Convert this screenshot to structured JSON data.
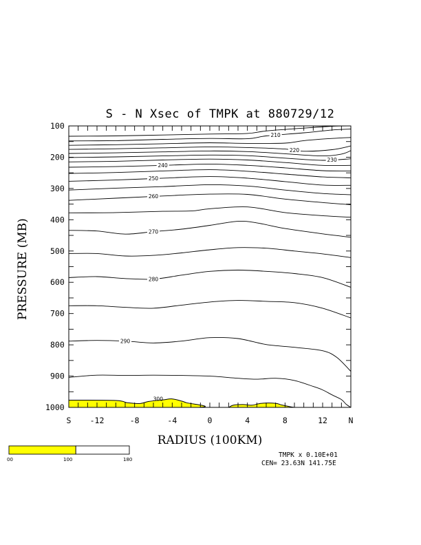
{
  "title": "S - N Xsec of TMPK at 880729/12",
  "footer": {
    "scale_text": "TMPK x  0.10E+01",
    "center_text": "CEN= 23.63N  141.75E"
  },
  "colors": {
    "fill_300": "#ffff00",
    "line": "#000000",
    "background": "#ffffff"
  },
  "colorbar": {
    "labels": [
      "00",
      "100",
      "180"
    ],
    "segments": [
      {
        "color": "#ffff00",
        "from": 0,
        "to": 100
      },
      {
        "color": "#ffffff",
        "from": 100,
        "to": 180
      }
    ]
  },
  "chart_data": {
    "type": "contour",
    "title": "S - N Xsec of TMPK at 880729/12",
    "xlabel": "RADIUS (100KM)",
    "ylabel": "PRESSURE (MB)",
    "xlim": [
      -15,
      15
    ],
    "ylim": [
      1000,
      100
    ],
    "y_scale": "linear, inverted",
    "x_tick_labels": [
      {
        "x": -15,
        "label": "S"
      },
      {
        "x": -12,
        "label": "-12"
      },
      {
        "x": -8,
        "label": "-8"
      },
      {
        "x": -4,
        "label": "-4"
      },
      {
        "x": 0,
        "label": "0"
      },
      {
        "x": 4,
        "label": "4"
      },
      {
        "x": 8,
        "label": "8"
      },
      {
        "x": 12,
        "label": "12"
      },
      {
        "x": 15,
        "label": "N"
      }
    ],
    "y_tick_labels": [
      {
        "y": 100,
        "label": "100"
      },
      {
        "y": 200,
        "label": "200"
      },
      {
        "y": 300,
        "label": "300"
      },
      {
        "y": 400,
        "label": "400"
      },
      {
        "y": 500,
        "label": "500"
      },
      {
        "y": 600,
        "label": "600"
      },
      {
        "y": 700,
        "label": "700"
      },
      {
        "y": 800,
        "label": "800"
      },
      {
        "y": 900,
        "label": "900"
      },
      {
        "y": 1000,
        "label": "1000"
      }
    ],
    "x_minor_ticks": [
      -14,
      -13,
      -12,
      -11,
      -10,
      -9,
      -8,
      -7,
      -6,
      -5,
      -4,
      -3,
      -2,
      -1,
      0,
      1,
      2,
      3,
      4,
      5,
      6,
      7,
      8,
      9,
      10,
      11,
      12,
      13,
      14
    ],
    "y_minor_ticks": [
      150,
      250,
      350,
      450,
      550,
      650,
      750,
      850,
      950
    ],
    "contour_levels": [
      205,
      210,
      215,
      220,
      225,
      230,
      235,
      240,
      245,
      250,
      255,
      260,
      265,
      270,
      275,
      280,
      285,
      290,
      295
    ],
    "contours": [
      {
        "level": 205,
        "points": [
          [
            -15,
            133
          ],
          [
            -10,
            132
          ],
          [
            -5,
            129
          ],
          [
            0,
            126
          ],
          [
            4,
            124
          ],
          [
            6,
            116
          ],
          [
            10,
            107
          ],
          [
            13,
            101
          ],
          [
            15,
            100
          ]
        ]
      },
      {
        "level": 210,
        "points": [
          [
            -15,
            148
          ],
          [
            -10,
            147
          ],
          [
            -5,
            143
          ],
          [
            0,
            140
          ],
          [
            4,
            141
          ],
          [
            6,
            132
          ],
          [
            10,
            122
          ],
          [
            13,
            113
          ],
          [
            15,
            110
          ]
        ],
        "label": {
          "x": 7,
          "text": "210"
        }
      },
      {
        "level": 215,
        "points": [
          [
            -15,
            162
          ],
          [
            -10,
            160
          ],
          [
            -5,
            157
          ],
          [
            0,
            154
          ],
          [
            4,
            156
          ],
          [
            8,
            155
          ],
          [
            10,
            147
          ],
          [
            13,
            140
          ],
          [
            15,
            137
          ]
        ]
      },
      {
        "level": 220,
        "points": [
          [
            -15,
            175
          ],
          [
            -10,
            173
          ],
          [
            -5,
            170
          ],
          [
            0,
            167
          ],
          [
            4,
            169
          ],
          [
            8,
            174
          ],
          [
            10,
            181
          ],
          [
            13,
            176
          ],
          [
            15,
            164
          ]
        ],
        "label": {
          "x": 9,
          "text": "220"
        }
      },
      {
        "level": 225,
        "points": [
          [
            -15,
            188
          ],
          [
            -10,
            186
          ],
          [
            -5,
            183
          ],
          [
            0,
            180
          ],
          [
            4,
            182
          ],
          [
            8,
            189
          ],
          [
            12,
            196
          ],
          [
            14,
            190
          ],
          [
            15,
            179
          ]
        ]
      },
      {
        "level": 230,
        "points": [
          [
            -15,
            201
          ],
          [
            -10,
            199
          ],
          [
            -5,
            196
          ],
          [
            0,
            193
          ],
          [
            4,
            195
          ],
          [
            8,
            203
          ],
          [
            12,
            210
          ],
          [
            15,
            205
          ]
        ],
        "label": {
          "x": 13,
          "text": "230"
        }
      },
      {
        "level": 235,
        "points": [
          [
            -15,
            215
          ],
          [
            -10,
            213
          ],
          [
            -5,
            209
          ],
          [
            0,
            206
          ],
          [
            4,
            209
          ],
          [
            8,
            217
          ],
          [
            12,
            226
          ],
          [
            15,
            226
          ]
        ]
      },
      {
        "level": 240,
        "points": [
          [
            -15,
            232
          ],
          [
            -10,
            230
          ],
          [
            -5,
            226
          ],
          [
            0,
            222
          ],
          [
            4,
            226
          ],
          [
            8,
            234
          ],
          [
            12,
            243
          ],
          [
            15,
            244
          ]
        ],
        "label": {
          "x": -5,
          "text": "240"
        }
      },
      {
        "level": 245,
        "points": [
          [
            -15,
            252
          ],
          [
            -10,
            249
          ],
          [
            -5,
            244
          ],
          [
            0,
            240
          ],
          [
            4,
            245
          ],
          [
            8,
            254
          ],
          [
            12,
            263
          ],
          [
            15,
            266
          ]
        ]
      },
      {
        "level": 250,
        "points": [
          [
            -15,
            277
          ],
          [
            -10,
            273
          ],
          [
            -5,
            267
          ],
          [
            0,
            262
          ],
          [
            4,
            267
          ],
          [
            8,
            278
          ],
          [
            12,
            289
          ],
          [
            15,
            290
          ]
        ],
        "label": {
          "x": -6,
          "text": "250"
        }
      },
      {
        "level": 255,
        "points": [
          [
            -15,
            305
          ],
          [
            -10,
            299
          ],
          [
            -5,
            294
          ],
          [
            0,
            288
          ],
          [
            4,
            292
          ],
          [
            8,
            305
          ],
          [
            12,
            316
          ],
          [
            15,
            320
          ]
        ]
      },
      {
        "level": 260,
        "points": [
          [
            -15,
            338
          ],
          [
            -10,
            331
          ],
          [
            -5,
            324
          ],
          [
            0,
            318
          ],
          [
            4,
            319
          ],
          [
            8,
            334
          ],
          [
            12,
            345
          ],
          [
            15,
            352
          ]
        ],
        "label": {
          "x": -6,
          "text": "260"
        }
      },
      {
        "level": 265,
        "points": [
          [
            -15,
            378
          ],
          [
            -10,
            377
          ],
          [
            -5,
            373
          ],
          [
            -2,
            372
          ],
          [
            0,
            365
          ],
          [
            4,
            359
          ],
          [
            8,
            377
          ],
          [
            12,
            387
          ],
          [
            15,
            392
          ]
        ]
      },
      {
        "level": 270,
        "points": [
          [
            -15,
            434
          ],
          [
            -12,
            436
          ],
          [
            -9,
            446
          ],
          [
            -6,
            438
          ],
          [
            -3,
            430
          ],
          [
            0,
            418
          ],
          [
            3,
            405
          ],
          [
            5,
            410
          ],
          [
            8,
            428
          ],
          [
            12,
            445
          ],
          [
            15,
            456
          ]
        ],
        "label": {
          "x": -6,
          "text": "270"
        }
      },
      {
        "level": 275,
        "points": [
          [
            -15,
            508
          ],
          [
            -12,
            508
          ],
          [
            -9,
            516
          ],
          [
            -6,
            514
          ],
          [
            -3,
            506
          ],
          [
            0,
            496
          ],
          [
            3,
            489
          ],
          [
            6,
            491
          ],
          [
            9,
            500
          ],
          [
            12,
            509
          ],
          [
            15,
            521
          ]
        ]
      },
      {
        "level": 280,
        "points": [
          [
            -15,
            585
          ],
          [
            -12,
            582
          ],
          [
            -9,
            588
          ],
          [
            -6,
            590
          ],
          [
            -3,
            577
          ],
          [
            0,
            565
          ],
          [
            3,
            561
          ],
          [
            6,
            565
          ],
          [
            9,
            572
          ],
          [
            12,
            585
          ],
          [
            15,
            616
          ]
        ],
        "label": {
          "x": -6,
          "text": "280"
        }
      },
      {
        "level": 285,
        "points": [
          [
            -15,
            675
          ],
          [
            -12,
            675
          ],
          [
            -9,
            680
          ],
          [
            -6,
            683
          ],
          [
            -3,
            673
          ],
          [
            0,
            663
          ],
          [
            3,
            658
          ],
          [
            6,
            661
          ],
          [
            9,
            665
          ],
          [
            12,
            683
          ],
          [
            15,
            714
          ]
        ]
      },
      {
        "level": 290,
        "points": [
          [
            -15,
            788
          ],
          [
            -12,
            786
          ],
          [
            -9,
            788
          ],
          [
            -6,
            794
          ],
          [
            -3,
            788
          ],
          [
            0,
            777
          ],
          [
            3,
            780
          ],
          [
            6,
            799
          ],
          [
            9,
            808
          ],
          [
            12,
            819
          ],
          [
            13.5,
            840
          ],
          [
            15,
            885
          ]
        ],
        "label": {
          "x": -9,
          "text": "290"
        }
      },
      {
        "level": 295,
        "points": [
          [
            -15,
            904
          ],
          [
            -12,
            897
          ],
          [
            -9,
            898
          ],
          [
            -6,
            897
          ],
          [
            -3,
            898
          ],
          [
            0,
            900
          ],
          [
            3,
            907
          ],
          [
            5,
            910
          ],
          [
            7,
            907
          ],
          [
            9,
            914
          ],
          [
            11,
            933
          ],
          [
            12,
            944
          ],
          [
            13,
            960
          ],
          [
            14,
            975
          ],
          [
            14.5,
            990
          ],
          [
            15,
            1000
          ]
        ]
      }
    ],
    "shaded_regions": [
      {
        "level": 300,
        "label": "300",
        "color": "#ffff00",
        "label_x": -5.5,
        "points": [
          [
            -15,
            977
          ],
          [
            -10,
            978
          ],
          [
            -8.8,
            985
          ],
          [
            -7.5,
            988
          ],
          [
            -6.5,
            981
          ],
          [
            -5,
            976
          ],
          [
            -4,
            973
          ],
          [
            -3,
            980
          ],
          [
            -2.5,
            985
          ],
          [
            -1.2,
            1000
          ],
          [
            -15,
            1000
          ]
        ]
      },
      {
        "level": 300,
        "color": "#ffff00",
        "points": [
          [
            2,
            1000
          ],
          [
            2.5,
            993
          ],
          [
            3.5,
            991
          ],
          [
            4.5,
            993
          ],
          [
            5.5,
            987
          ],
          [
            7,
            987
          ],
          [
            7.6,
            992
          ],
          [
            8.4,
            997
          ],
          [
            9,
            1000
          ]
        ]
      }
    ]
  }
}
